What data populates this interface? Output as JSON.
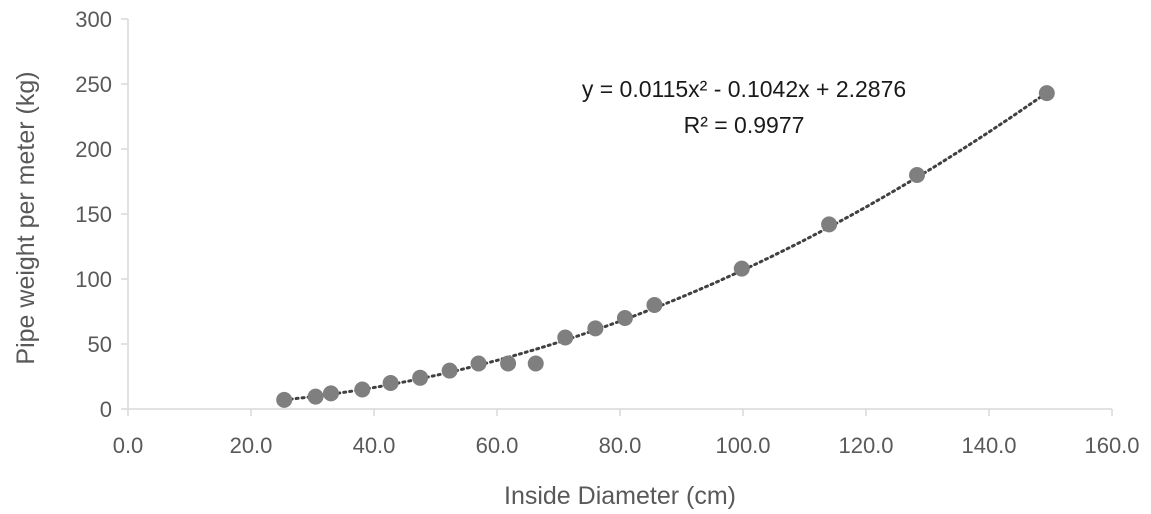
{
  "chart_data": {
    "type": "scatter",
    "title": "",
    "xlabel": "Inside Diameter (cm)",
    "ylabel": "Pipe weight per meter (kg)",
    "xlim": [
      0,
      160
    ],
    "ylim": [
      0,
      300
    ],
    "x_ticks": [
      "0.0",
      "20.0",
      "40.0",
      "60.0",
      "80.0",
      "100.0",
      "120.0",
      "140.0",
      "160.0"
    ],
    "y_ticks": [
      "0",
      "50",
      "100",
      "150",
      "200",
      "250",
      "300"
    ],
    "grid": false,
    "legend": "none",
    "series": [
      {
        "marker_color": "#7f7f7f",
        "points": [
          {
            "x": 25.4,
            "y": 7
          },
          {
            "x": 30.5,
            "y": 9.5
          },
          {
            "x": 33.0,
            "y": 12
          },
          {
            "x": 38.1,
            "y": 15
          },
          {
            "x": 42.7,
            "y": 20
          },
          {
            "x": 47.5,
            "y": 24
          },
          {
            "x": 52.3,
            "y": 29.5
          },
          {
            "x": 57.0,
            "y": 35
          },
          {
            "x": 61.8,
            "y": 35
          },
          {
            "x": 66.3,
            "y": 35
          },
          {
            "x": 71.1,
            "y": 55
          },
          {
            "x": 76.0,
            "y": 62
          },
          {
            "x": 80.8,
            "y": 70
          },
          {
            "x": 85.6,
            "y": 80
          },
          {
            "x": 99.8,
            "y": 108
          },
          {
            "x": 114.0,
            "y": 142
          },
          {
            "x": 128.3,
            "y": 180
          },
          {
            "x": 149.4,
            "y": 243
          }
        ]
      }
    ],
    "trendline": {
      "type": "polynomial",
      "order": 2,
      "coefficients": [
        0.0115,
        -0.1042,
        2.2876
      ],
      "x_range": [
        25.4,
        149.4
      ],
      "style": "dotted",
      "color": "#404040",
      "equation_text": "y = 0.0115x² - 0.1042x + 2.2876",
      "r2_text": "R² = 0.9977"
    }
  }
}
